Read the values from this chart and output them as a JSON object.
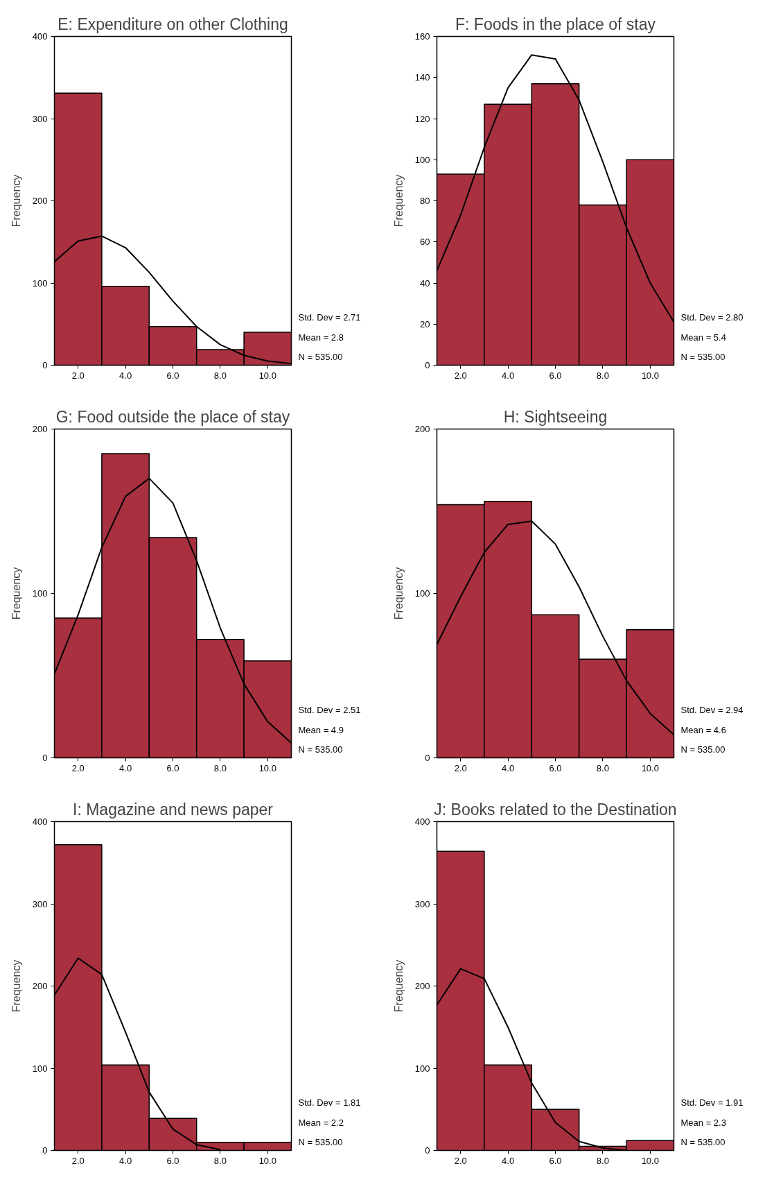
{
  "chart_data": [
    {
      "type": "histogram",
      "title": "E: Expenditure on other Clothing",
      "ylabel": "Frequency",
      "bins": [
        1,
        3,
        5,
        7,
        9,
        11
      ],
      "values": [
        331,
        96,
        47,
        19,
        40
      ],
      "color": "#a8303f",
      "xlim": [
        1,
        11
      ],
      "ylim": [
        0,
        400
      ],
      "yticks": [
        0,
        100,
        200,
        300,
        400
      ],
      "xticks": [
        {
          "value": 2,
          "label": "2.0"
        },
        {
          "value": 4,
          "label": "4.0"
        },
        {
          "value": 6,
          "label": "6.0"
        },
        {
          "value": 8,
          "label": "8.0"
        },
        {
          "value": 10,
          "label": "10.0"
        }
      ],
      "grid": false,
      "series": [
        {
          "type": "line",
          "color": "#000000",
          "x": [
            1,
            2,
            3,
            4,
            5,
            6,
            7,
            8,
            9,
            10,
            11
          ],
          "values": [
            126,
            151,
            157,
            143,
            113,
            78,
            47,
            25,
            12,
            5,
            2
          ]
        }
      ],
      "annotations": [
        "Std. Dev = 2.71",
        "Mean = 2.8",
        "N = 535.00"
      ]
    },
    {
      "type": "histogram",
      "title": "F: Foods in the place of stay",
      "ylabel": "Frequency",
      "bins": [
        1,
        3,
        5,
        7,
        9,
        11
      ],
      "values": [
        93,
        127,
        137,
        78,
        100
      ],
      "color": "#a8303f",
      "xlim": [
        1,
        11
      ],
      "ylim": [
        0,
        160
      ],
      "yticks": [
        0,
        20,
        40,
        60,
        80,
        100,
        120,
        140,
        160
      ],
      "xticks": [
        {
          "value": 2,
          "label": "2.0"
        },
        {
          "value": 4,
          "label": "4.0"
        },
        {
          "value": 6,
          "label": "6.0"
        },
        {
          "value": 8,
          "label": "8.0"
        },
        {
          "value": 10,
          "label": "10.0"
        }
      ],
      "grid": false,
      "series": [
        {
          "type": "line",
          "color": "#000000",
          "x": [
            1,
            2,
            3,
            4,
            5,
            6,
            7,
            8,
            9,
            10,
            11
          ],
          "values": [
            46,
            73,
            106,
            135,
            151,
            149,
            129,
            99,
            67,
            40,
            21
          ]
        }
      ],
      "annotations": [
        "Std. Dev = 2.80",
        "Mean = 5.4",
        "N = 535.00"
      ]
    },
    {
      "type": "histogram",
      "title": "G: Food outside the place of stay",
      "ylabel": "Frequency",
      "bins": [
        1,
        3,
        5,
        7,
        9,
        11
      ],
      "values": [
        85,
        185,
        134,
        72,
        59
      ],
      "color": "#a8303f",
      "xlim": [
        1,
        11
      ],
      "ylim": [
        0,
        200
      ],
      "yticks": [
        0,
        100,
        200
      ],
      "xticks": [
        {
          "value": 2,
          "label": "2.0"
        },
        {
          "value": 4,
          "label": "4.0"
        },
        {
          "value": 6,
          "label": "6.0"
        },
        {
          "value": 8,
          "label": "8.0"
        },
        {
          "value": 10,
          "label": "10.0"
        }
      ],
      "grid": false,
      "series": [
        {
          "type": "line",
          "color": "#000000",
          "x": [
            1,
            2,
            3,
            4,
            5,
            6,
            7,
            8,
            9,
            10,
            11
          ],
          "values": [
            51,
            87,
            128,
            159,
            170,
            155,
            120,
            79,
            45,
            22,
            9
          ]
        }
      ],
      "annotations": [
        "Std. Dev = 2.51",
        "Mean = 4.9",
        "N = 535.00"
      ]
    },
    {
      "type": "histogram",
      "title": "H: Sightseeing",
      "ylabel": "Frequency",
      "bins": [
        1,
        3,
        5,
        7,
        9,
        11
      ],
      "values": [
        154,
        156,
        87,
        60,
        78
      ],
      "color": "#a8303f",
      "xlim": [
        1,
        11
      ],
      "ylim": [
        0,
        200
      ],
      "yticks": [
        0,
        100,
        200
      ],
      "xticks": [
        {
          "value": 2,
          "label": "2.0"
        },
        {
          "value": 4,
          "label": "4.0"
        },
        {
          "value": 6,
          "label": "6.0"
        },
        {
          "value": 8,
          "label": "8.0"
        },
        {
          "value": 10,
          "label": "10.0"
        }
      ],
      "grid": false,
      "series": [
        {
          "type": "line",
          "color": "#000000",
          "x": [
            1,
            2,
            3,
            4,
            5,
            6,
            7,
            8,
            9,
            10,
            11
          ],
          "values": [
            69,
            98,
            125,
            142,
            144,
            130,
            104,
            74,
            47,
            27,
            14
          ]
        }
      ],
      "annotations": [
        "Std. Dev = 2.94",
        "Mean = 4.6",
        "N = 535.00"
      ]
    },
    {
      "type": "histogram",
      "title": "I: Magazine and news paper",
      "ylabel": "Frequency",
      "bins": [
        1,
        3,
        5,
        7,
        9,
        11
      ],
      "values": [
        372,
        104,
        39,
        10,
        10
      ],
      "color": "#a8303f",
      "xlim": [
        1,
        11
      ],
      "ylim": [
        0,
        400
      ],
      "yticks": [
        0,
        100,
        200,
        300,
        400
      ],
      "xticks": [
        {
          "value": 2,
          "label": "2.0"
        },
        {
          "value": 4,
          "label": "4.0"
        },
        {
          "value": 6,
          "label": "6.0"
        },
        {
          "value": 8,
          "label": "8.0"
        },
        {
          "value": 10,
          "label": "10.0"
        }
      ],
      "grid": false,
      "series": [
        {
          "type": "line",
          "color": "#000000",
          "x": [
            1,
            2,
            3,
            4,
            5,
            6,
            7,
            8
          ],
          "values": [
            189,
            234,
            214,
            144,
            71,
            26,
            7,
            1
          ]
        }
      ],
      "annotations": [
        "Std. Dev = 1.81",
        "Mean = 2.2",
        "N = 535.00"
      ]
    },
    {
      "type": "histogram",
      "title": "J: Books related to the Destination",
      "ylabel": "Frequency",
      "bins": [
        1,
        3,
        5,
        7,
        9,
        11
      ],
      "values": [
        364,
        104,
        50,
        5,
        12
      ],
      "color": "#a8303f",
      "xlim": [
        1,
        11
      ],
      "ylim": [
        0,
        400
      ],
      "yticks": [
        0,
        100,
        200,
        300,
        400
      ],
      "xticks": [
        {
          "value": 2,
          "label": "2.0"
        },
        {
          "value": 4,
          "label": "4.0"
        },
        {
          "value": 6,
          "label": "6.0"
        },
        {
          "value": 8,
          "label": "8.0"
        },
        {
          "value": 10,
          "label": "10.0"
        }
      ],
      "grid": false,
      "series": [
        {
          "type": "line",
          "color": "#000000",
          "x": [
            1,
            2,
            3,
            4,
            5,
            6,
            7,
            8,
            9
          ],
          "values": [
            177,
            221,
            209,
            150,
            82,
            34,
            11,
            3,
            0
          ]
        }
      ],
      "annotations": [
        "Std. Dev = 1.91",
        "Mean = 2.3",
        "N = 535.00"
      ]
    }
  ]
}
